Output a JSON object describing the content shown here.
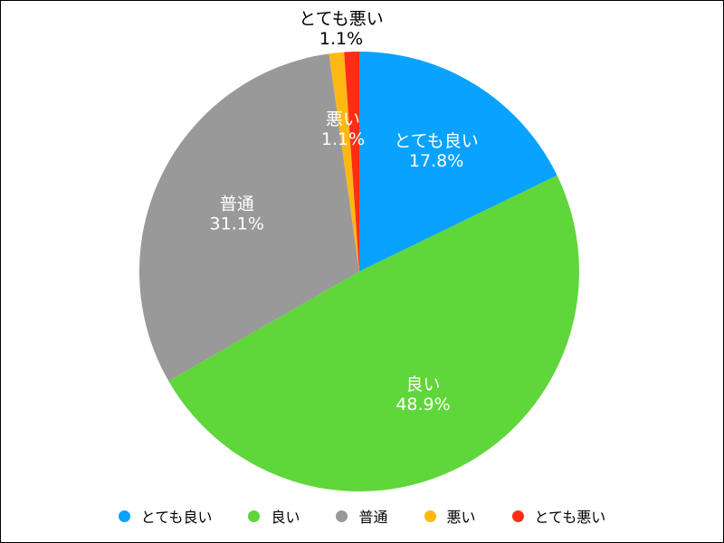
{
  "chart_data": {
    "type": "pie",
    "title": "",
    "start_angle_deg": 0,
    "direction": "clockwise",
    "slices": [
      {
        "label": "とても良い",
        "value": 17.8,
        "value_text": "17.8%",
        "color": "#0aa2ff",
        "label_color": "#ffffff"
      },
      {
        "label": "良い",
        "value": 48.9,
        "value_text": "48.9%",
        "color": "#5fd63a",
        "label_color": "#ffffff"
      },
      {
        "label": "普通",
        "value": 31.1,
        "value_text": "31.1%",
        "color": "#999999",
        "label_color": "#ffffff"
      },
      {
        "label": "悪い",
        "value": 1.1,
        "value_text": "1.1%",
        "color": "#fdb812",
        "label_color": "#ffffff"
      },
      {
        "label": "とても悪い",
        "value": 1.1,
        "value_text": "1.1%",
        "color": "#ff2d16",
        "label_color": "#000000"
      }
    ],
    "legend": {
      "placement": "bottom",
      "items": [
        {
          "label": "とても良い",
          "color": "#0aa2ff"
        },
        {
          "label": "良い",
          "color": "#5fd63a"
        },
        {
          "label": "普通",
          "color": "#999999"
        },
        {
          "label": "悪い",
          "color": "#fdb812"
        },
        {
          "label": "とても悪い",
          "color": "#ff2d16"
        }
      ]
    }
  }
}
